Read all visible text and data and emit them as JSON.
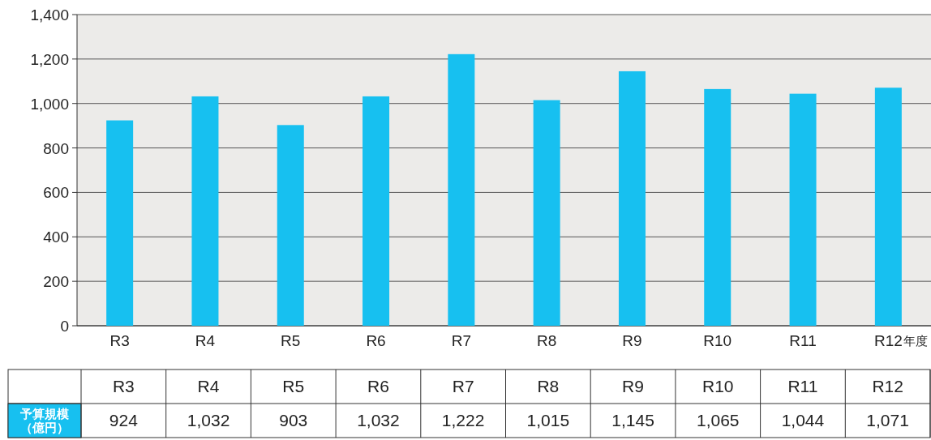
{
  "chart_data": {
    "type": "bar",
    "xlabel": "年度",
    "categories": [
      "R3",
      "R4",
      "R5",
      "R6",
      "R7",
      "R8",
      "R9",
      "R10",
      "R11",
      "R12"
    ],
    "values": [
      924,
      1032,
      903,
      1032,
      1222,
      1015,
      1145,
      1065,
      1044,
      1071
    ],
    "value_labels": [
      "924",
      "1,032",
      "903",
      "1,032",
      "1,222",
      "1,015",
      "1,145",
      "1,065",
      "1,044",
      "1,071"
    ],
    "color": "#17c0f0",
    "ylim": [
      0,
      1400
    ],
    "yticks": [
      0,
      200,
      400,
      600,
      800,
      {
        "value": 1000,
        "label": "1,000"
      },
      {
        "value": 1200,
        "label": "1,200"
      },
      {
        "value": 1400,
        "label": "1,400"
      }
    ],
    "grid": "y",
    "annotations": [
      "予算規模（億円）"
    ]
  }
}
